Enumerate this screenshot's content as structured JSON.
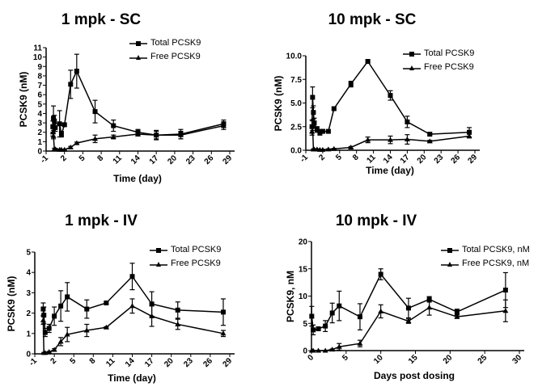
{
  "chart_data": [
    {
      "type": "line",
      "title": "1 mpk - SC",
      "xlabel": "Time (day)",
      "ylabel": "PCSK9 (nM)",
      "xlim": [
        -1,
        29
      ],
      "ylim": [
        0,
        11
      ],
      "xticks": [
        "-1",
        "2",
        "5",
        "8",
        "11",
        "14",
        "17",
        "20",
        "23",
        "26",
        "29"
      ],
      "yticks": [
        "0",
        "1",
        "2",
        "3",
        "4",
        "5",
        "6",
        "7",
        "8",
        "9",
        "10",
        "11"
      ],
      "legend_position": "top-right",
      "series": [
        {
          "name": "Total PCSK9",
          "marker": "square",
          "x": [
            0.1,
            0.2,
            0.35,
            0.5,
            1.2,
            1.5,
            2,
            3,
            4,
            7,
            10,
            14,
            17,
            21,
            28
          ],
          "y": [
            2.6,
            3.5,
            3.2,
            2.5,
            2.9,
            1.8,
            2.8,
            7.1,
            8.5,
            4.2,
            2.7,
            2.0,
            1.7,
            1.8,
            2.9
          ],
          "err": [
            0.6,
            1.3,
            0.6,
            0.4,
            1.4,
            0.3,
            0.1,
            1.5,
            1.8,
            1.2,
            0.6,
            0.3,
            0.5,
            0.5,
            0.4
          ]
        },
        {
          "name": "Free PCSK9",
          "marker": "triangle",
          "x": [
            0.1,
            0.2,
            0.35,
            0.5,
            1.2,
            1.5,
            2,
            3,
            4,
            7,
            10,
            14,
            17,
            21,
            28
          ],
          "y": [
            2.0,
            1.6,
            0.2,
            0.2,
            0.15,
            0.15,
            0.15,
            0.4,
            0.85,
            1.3,
            1.5,
            1.8,
            1.7,
            1.7,
            2.7
          ],
          "err": [
            0.4,
            0.3,
            0.1,
            0.1,
            0.05,
            0.05,
            0.05,
            0.1,
            0.1,
            0.4,
            0.2,
            0.2,
            0.4,
            0.4,
            0.4
          ]
        }
      ]
    },
    {
      "type": "line",
      "title": "10 mpk - SC",
      "xlabel": "Time (day)",
      "ylabel": "PCSK9 (nM)",
      "xlim": [
        -1,
        29
      ],
      "ylim": [
        0,
        10
      ],
      "xticks": [
        "-1",
        "2",
        "5",
        "8",
        "11",
        "14",
        "17",
        "20",
        "23",
        "26",
        "29"
      ],
      "yticks": [
        "0.0",
        "2.5",
        "5.0",
        "7.5",
        "10.0"
      ],
      "legend_position": "top-right",
      "series": [
        {
          "name": "Total PCSK9",
          "marker": "square",
          "x": [
            0.1,
            0.2,
            0.35,
            0.5,
            1,
            1.5,
            2,
            3,
            4,
            7,
            10,
            14,
            17,
            21,
            28
          ],
          "y": [
            2.5,
            5.6,
            4.0,
            2.9,
            2.2,
            1.9,
            2.0,
            2.0,
            4.4,
            7.0,
            9.4,
            5.8,
            3.0,
            1.7,
            1.9
          ],
          "err": [
            0.7,
            1.1,
            0.7,
            0.5,
            0.3,
            0.3,
            0.2,
            0.1,
            0.1,
            0.3,
            0.1,
            0.5,
            0.6,
            0.1,
            0.5
          ]
        },
        {
          "name": "Free PCSK9",
          "marker": "triangle",
          "x": [
            0.1,
            0.2,
            0.35,
            0.5,
            1,
            1.5,
            2,
            3,
            4,
            7,
            10,
            14,
            17,
            21,
            28
          ],
          "y": [
            2.0,
            2.6,
            0.1,
            0.1,
            0.1,
            0.05,
            0.05,
            0.1,
            0.15,
            0.3,
            1.1,
            1.1,
            1.15,
            0.95,
            1.5
          ],
          "err": [
            0.4,
            0.5,
            0.05,
            0.05,
            0.05,
            0.05,
            0.05,
            0.05,
            0.05,
            0.1,
            0.3,
            0.4,
            0.5,
            0.1,
            0.2
          ]
        }
      ]
    },
    {
      "type": "line",
      "title": "1 mpk - IV",
      "xlabel": "Time (day)",
      "ylabel": "PCSK9 (nM)",
      "xlim": [
        -1,
        29
      ],
      "ylim": [
        0,
        5
      ],
      "xticks": [
        "-1",
        "2",
        "5",
        "8",
        "11",
        "14",
        "17",
        "20",
        "23",
        "26",
        "29"
      ],
      "yticks": [
        "0",
        "1",
        "2",
        "3",
        "4",
        "5"
      ],
      "legend_position": "top-right",
      "series": [
        {
          "name": "Total PCSK9",
          "marker": "square",
          "x": [
            0.3,
            0.4,
            0.6,
            1.2,
            2,
            3,
            4,
            7,
            10,
            14,
            17,
            21,
            28
          ],
          "y": [
            2.2,
            1.9,
            1.05,
            1.25,
            1.85,
            2.35,
            2.8,
            2.2,
            2.5,
            3.8,
            2.45,
            2.15,
            2.05
          ],
          "err": [
            0.3,
            0.4,
            0.2,
            0.2,
            0.45,
            0.75,
            0.7,
            0.45,
            0.05,
            0.65,
            0.6,
            0.4,
            0.65
          ]
        },
        {
          "name": "Free PCSK9",
          "marker": "triangle",
          "x": [
            0.3,
            0.4,
            0.6,
            1.2,
            2,
            3,
            4,
            7,
            10,
            14,
            17,
            21,
            28
          ],
          "y": [
            1.65,
            0.05,
            0.05,
            0.1,
            0.2,
            0.6,
            0.95,
            1.15,
            1.3,
            2.35,
            1.85,
            1.45,
            1.0
          ],
          "err": [
            0.2,
            0.02,
            0.02,
            0.02,
            0.05,
            0.2,
            0.35,
            0.3,
            0.03,
            0.35,
            0.5,
            0.25,
            0.15
          ]
        }
      ]
    },
    {
      "type": "line",
      "title": "10 mpk - IV",
      "xlabel": "Days post dosing",
      "ylabel": "PCSK9, nM",
      "xlim": [
        0,
        30
      ],
      "ylim": [
        0,
        20
      ],
      "xticks": [
        "0",
        "5",
        "10",
        "15",
        "20",
        "25",
        "30"
      ],
      "yticks": [
        "0",
        "5",
        "10",
        "15",
        "20"
      ],
      "legend_position": "top-right",
      "series": [
        {
          "name": "Total PCSK9, nM",
          "marker": "square",
          "x": [
            0.04,
            0.25,
            1,
            2,
            3,
            4,
            7,
            10,
            14,
            17,
            21,
            28
          ],
          "y": [
            6.3,
            3.8,
            4.0,
            4.5,
            6.9,
            8.2,
            6.2,
            14.0,
            7.8,
            9.4,
            7.1,
            11.1
          ],
          "err": [
            1.8,
            0.9,
            0.2,
            1.0,
            1.8,
            2.7,
            2.4,
            1.0,
            1.8,
            0.5,
            0.5,
            3.2
          ]
        },
        {
          "name": "Free PCSK9, nM",
          "marker": "triangle",
          "x": [
            0.04,
            0.25,
            1,
            2,
            3,
            4,
            7,
            10,
            14,
            17,
            21,
            28
          ],
          "y": [
            0,
            0,
            0,
            0,
            0.2,
            0.7,
            1.3,
            7.2,
            5.4,
            7.9,
            6.2,
            7.3
          ],
          "err": [
            0,
            0,
            0,
            0,
            0.1,
            0.6,
            0.6,
            1.2,
            0.4,
            1.4,
            0.3,
            2.0
          ]
        }
      ]
    }
  ]
}
